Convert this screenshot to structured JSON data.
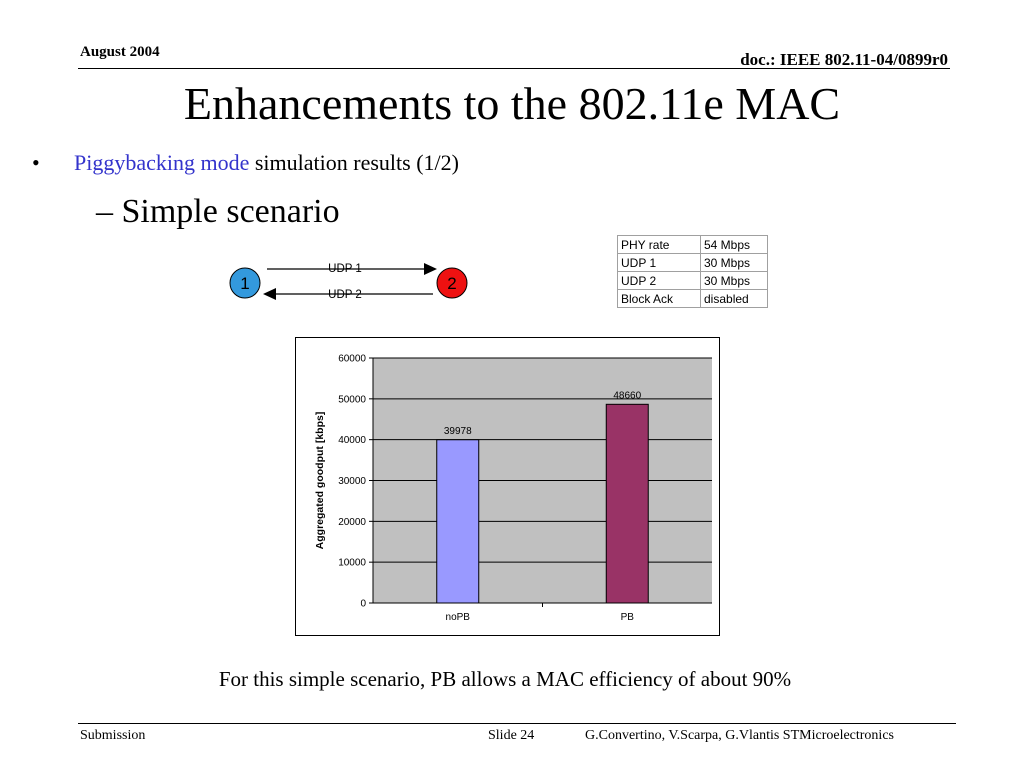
{
  "header": {
    "date": "August 2004",
    "doc": "doc.: IEEE 802.11-04/0899r0"
  },
  "title": "Enhancements to the 802.11e MAC",
  "bullets": {
    "symbol": "•",
    "level1_highlight": "Piggybacking mode",
    "level1_rest": " simulation results (1/2)",
    "level2": "– Simple scenario"
  },
  "diagram": {
    "node1": {
      "label": "1",
      "color": "#3399dd"
    },
    "node2": {
      "label": "2",
      "color": "#ee1111"
    },
    "flow1": "UDP 1",
    "flow2": "UDP 2"
  },
  "params": {
    "rows": [
      {
        "name": "PHY rate",
        "value": "54 Mbps"
      },
      {
        "name": "UDP 1",
        "value": "30 Mbps"
      },
      {
        "name": "UDP 2",
        "value": "30 Mbps"
      },
      {
        "name": "Block Ack",
        "value": "disabled"
      }
    ]
  },
  "chart_data": {
    "type": "bar",
    "categories": [
      "noPB",
      "PB"
    ],
    "values": [
      39978,
      48660
    ],
    "data_labels": [
      "39978",
      "48660"
    ],
    "colors": [
      "#9999ff",
      "#993366"
    ],
    "ylabel": "Aggregated goodput [kbps]",
    "xlabel": "",
    "title": "",
    "ylim": [
      0,
      60000
    ],
    "yticks": [
      0,
      10000,
      20000,
      30000,
      40000,
      50000,
      60000
    ],
    "grid": true,
    "plot_background": "#c0c0c0"
  },
  "caption": "For this simple scenario, PB allows a MAC efficiency of about 90%",
  "footer": {
    "left": "Submission",
    "slide": "Slide 24",
    "authors": "G.Convertino, V.Scarpa, G.Vlantis  STMicroelectronics"
  }
}
